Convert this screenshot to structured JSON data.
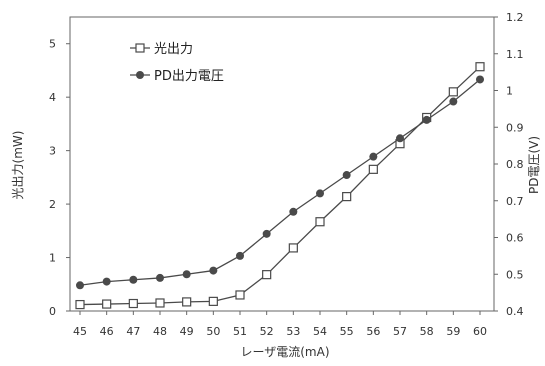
{
  "chart_data": {
    "type": "line",
    "title": "",
    "xlabel": "レーザ電流(mA)",
    "ylabel_left": "光出力(mW)",
    "ylabel_right": "PD電圧(V)",
    "categories": [
      "45",
      "46",
      "47",
      "48",
      "49",
      "50",
      "51",
      "52",
      "53",
      "54",
      "55",
      "56",
      "57",
      "58",
      "59",
      "60"
    ],
    "ylim_left": [
      0,
      5.5
    ],
    "ylim_right": [
      0.4,
      1.2
    ],
    "yticks_left": [
      0,
      1,
      2,
      3,
      4,
      5
    ],
    "yticks_right": [
      "0.4",
      "0.5",
      "0.6",
      "0.7",
      "0.8",
      "0.9",
      "1",
      "1.1",
      "1.2"
    ],
    "series": [
      {
        "name": "光出力",
        "axis": "left",
        "marker": "open-square",
        "color": "#4a4a4a",
        "values": [
          0.12,
          0.13,
          0.14,
          0.15,
          0.17,
          0.18,
          0.3,
          0.68,
          1.18,
          1.67,
          2.14,
          2.65,
          3.13,
          3.62,
          4.1,
          4.57
        ]
      },
      {
        "name": "PD出力電圧",
        "axis": "right",
        "marker": "filled-circle",
        "color": "#4a4a4a",
        "values": [
          0.47,
          0.48,
          0.485,
          0.49,
          0.5,
          0.51,
          0.55,
          0.61,
          0.67,
          0.72,
          0.77,
          0.82,
          0.87,
          0.92,
          0.97,
          1.03
        ]
      }
    ],
    "grid": false,
    "legend_position": "top-left",
    "legend": [
      "-□- 光出力",
      "PD出力電圧"
    ]
  }
}
